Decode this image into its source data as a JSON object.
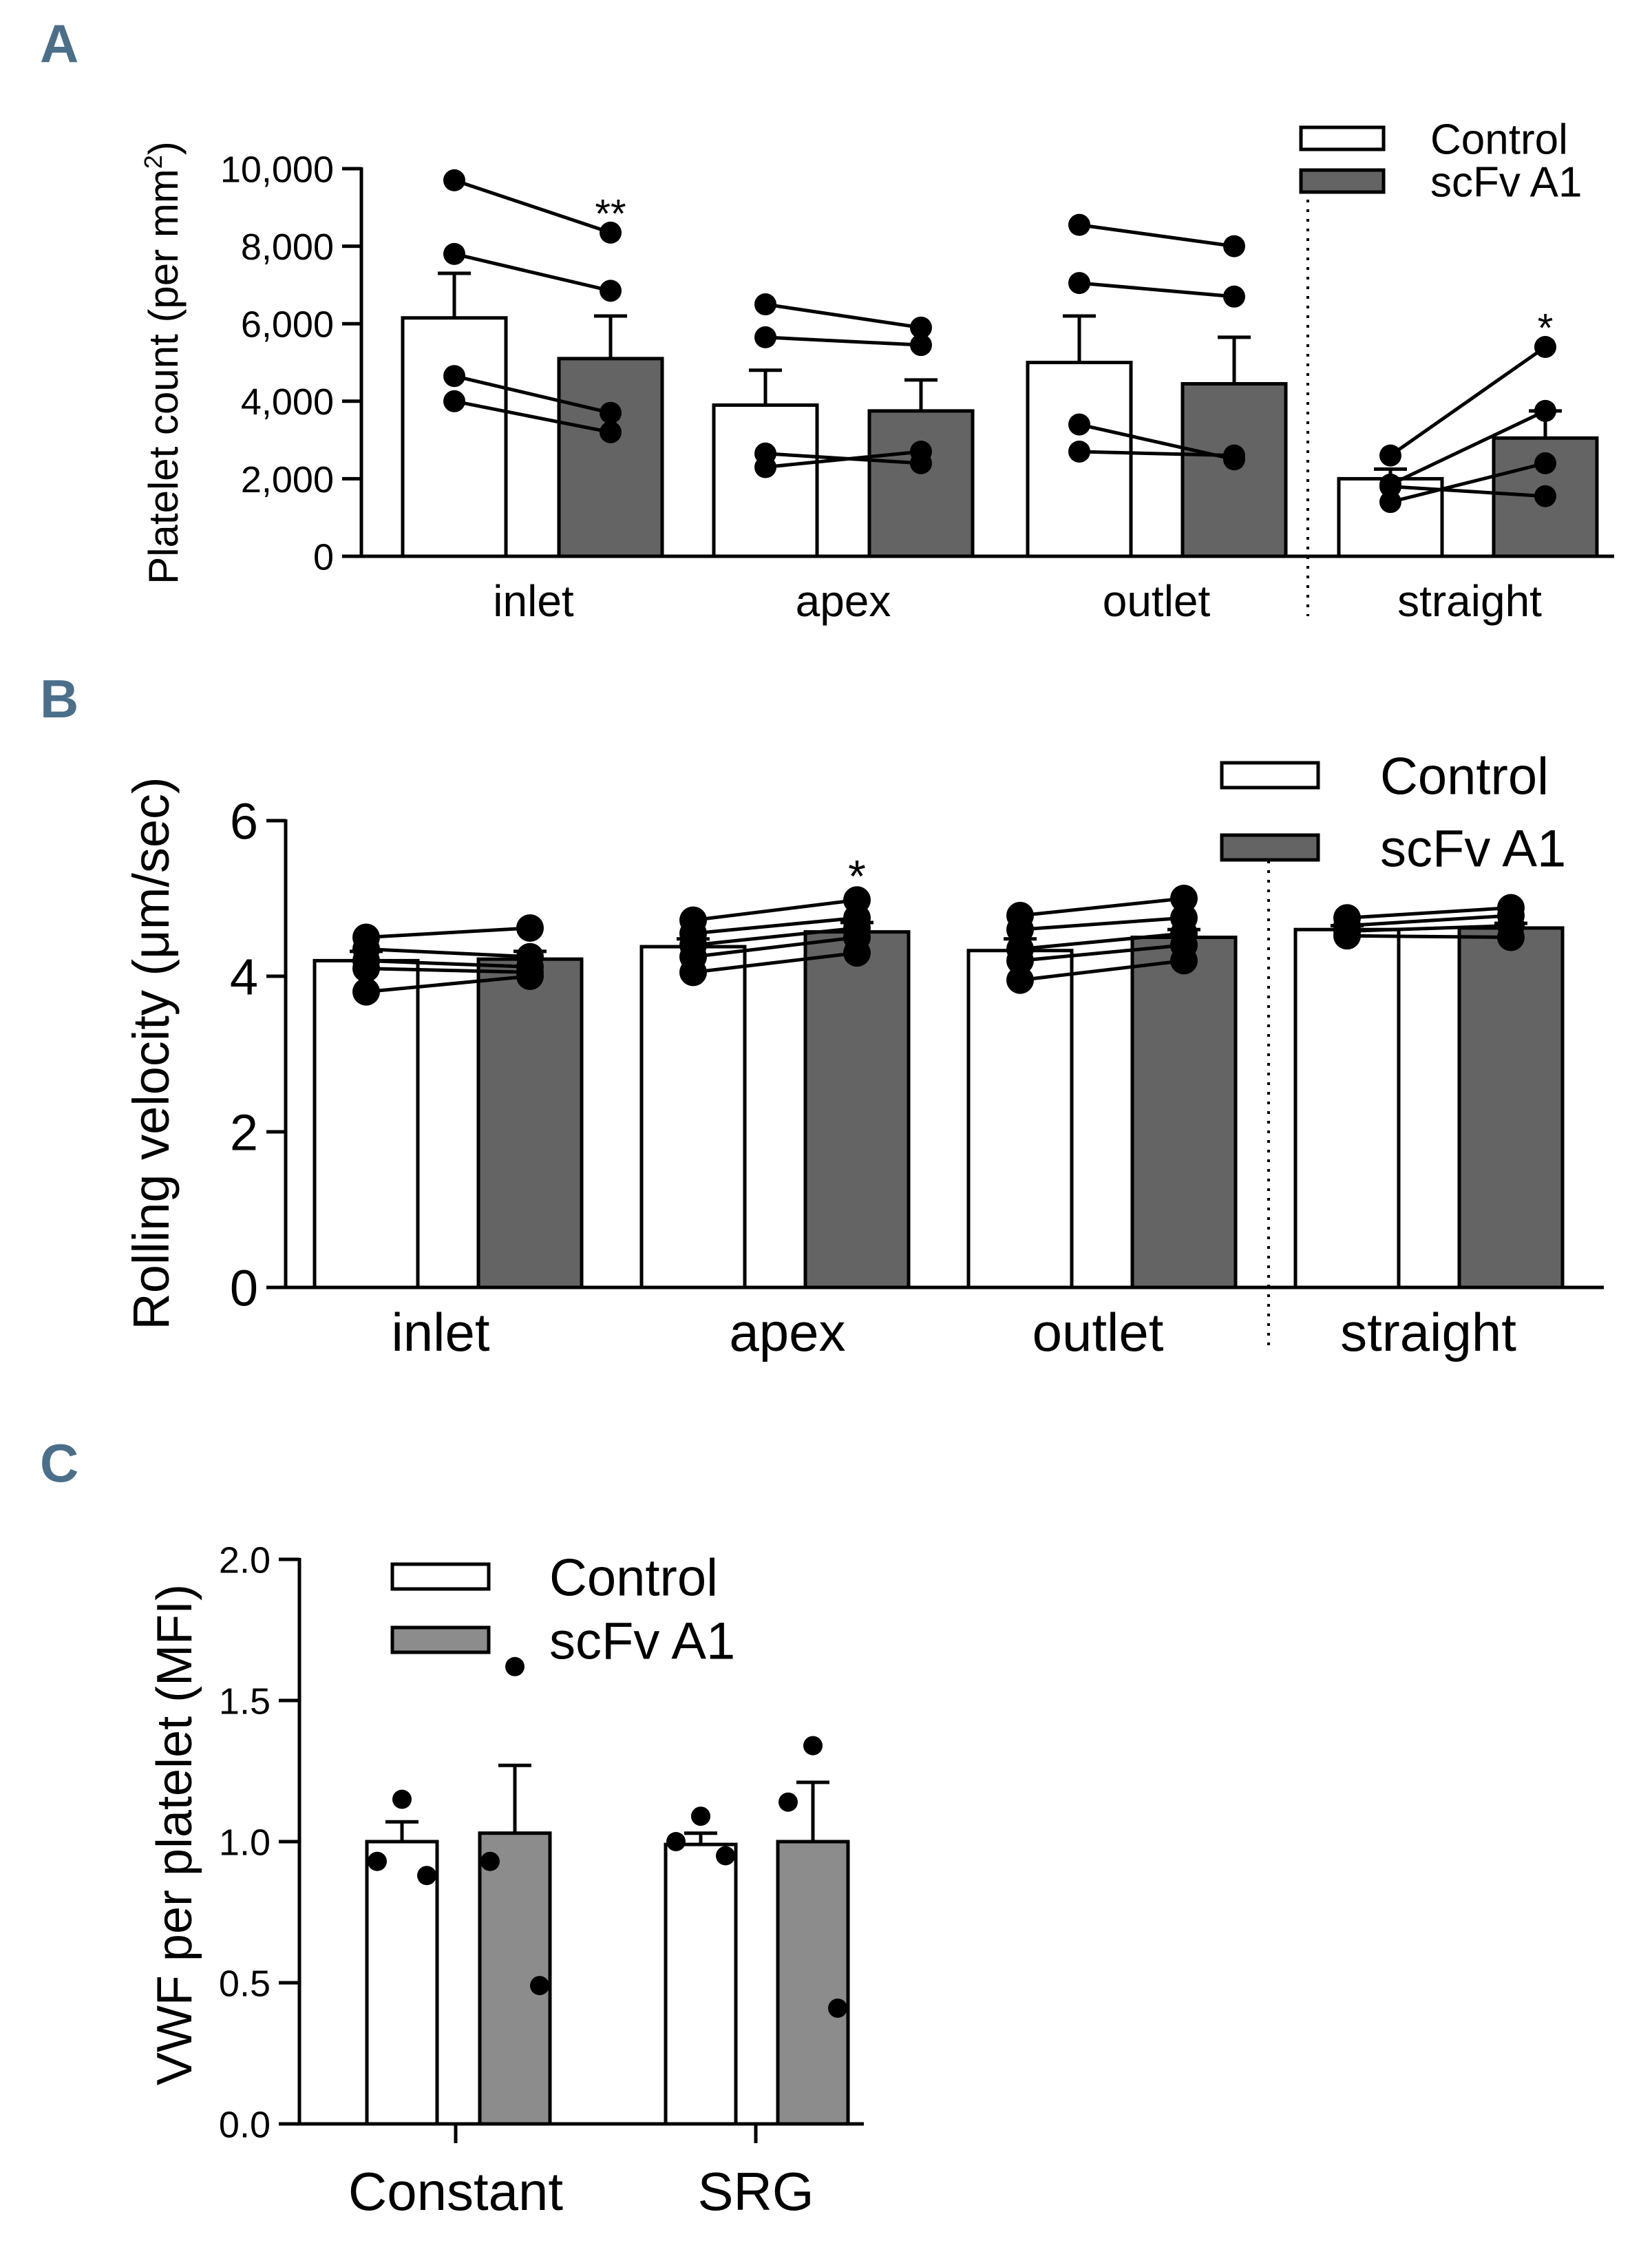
{
  "colors": {
    "control": "#ffffff",
    "treated_A": "#646464",
    "treated_B": "#646464",
    "treated_C": "#8c8c8c",
    "letter": "#4b6f8a"
  },
  "chart_data": [
    {
      "panel": "A",
      "type": "bar",
      "ylabel": "Platelet count (per mm",
      "ylabel_sup": "2",
      "ylabel_end": ")",
      "ylim": [
        0,
        10000
      ],
      "yticks": [
        0,
        2000,
        4000,
        6000,
        8000,
        10000
      ],
      "ytick_labels": [
        "0",
        "2,000",
        "4,000",
        "6,000",
        "8,000",
        "10,000"
      ],
      "categories": [
        "inlet",
        "apex",
        "outlet",
        "straight"
      ],
      "legend": [
        "Control",
        "scFv A1"
      ],
      "legend_position": "top-right",
      "series": [
        {
          "name": "Control",
          "values": [
            6150,
            3900,
            5000,
            2000
          ],
          "sem": [
            1150,
            900,
            1200,
            250
          ]
        },
        {
          "name": "scFv A1",
          "values": [
            5100,
            3750,
            4450,
            3050
          ],
          "sem": [
            1100,
            800,
            1200,
            700
          ]
        }
      ],
      "paired_points": [
        [
          [
            9700,
            8350
          ],
          [
            7800,
            6850
          ],
          [
            4650,
            3700
          ],
          [
            4000,
            3200
          ]
        ],
        [
          [
            6500,
            5900
          ],
          [
            5650,
            5450
          ],
          [
            2650,
            2400
          ],
          [
            2300,
            2700
          ]
        ],
        [
          [
            8550,
            8000
          ],
          [
            7050,
            6700
          ],
          [
            3400,
            2500
          ],
          [
            2700,
            2600
          ]
        ],
        [
          [
            2600,
            5400
          ],
          [
            1850,
            3750
          ],
          [
            1400,
            2400
          ],
          [
            1800,
            1550
          ]
        ]
      ],
      "significance": [
        "**",
        "",
        "",
        "*"
      ]
    },
    {
      "panel": "B",
      "type": "bar",
      "ylabel": "Rolling velocity (μm/sec)",
      "ylim": [
        0,
        6
      ],
      "yticks": [
        0,
        2,
        4,
        6
      ],
      "ytick_labels": [
        "0",
        "2",
        "4",
        "6"
      ],
      "categories": [
        "inlet",
        "apex",
        "outlet",
        "straight"
      ],
      "legend": [
        "Control",
        "scFv A1"
      ],
      "legend_position": "top-right",
      "series": [
        {
          "name": "Control",
          "values": [
            4.2,
            4.38,
            4.33,
            4.6
          ],
          "sem": [
            0.12,
            0.1,
            0.15,
            0.05
          ]
        },
        {
          "name": "scFv A1",
          "values": [
            4.22,
            4.57,
            4.5,
            4.62
          ],
          "sem": [
            0.1,
            0.12,
            0.1,
            0.06
          ]
        }
      ],
      "paired_points": [
        [
          [
            4.5,
            4.62
          ],
          [
            4.35,
            4.25
          ],
          [
            4.2,
            4.12
          ],
          [
            4.1,
            4.05
          ],
          [
            3.8,
            4.0
          ]
        ],
        [
          [
            4.72,
            4.98
          ],
          [
            4.55,
            4.75
          ],
          [
            4.4,
            4.62
          ],
          [
            4.25,
            4.5
          ],
          [
            4.05,
            4.3
          ]
        ],
        [
          [
            4.78,
            5.0
          ],
          [
            4.6,
            4.75
          ],
          [
            4.35,
            4.55
          ],
          [
            4.2,
            4.4
          ],
          [
            3.95,
            4.2
          ]
        ],
        [
          [
            4.75,
            4.88
          ],
          [
            4.65,
            4.78
          ],
          [
            4.58,
            4.65
          ],
          [
            4.52,
            4.5
          ]
        ]
      ],
      "significance": [
        "",
        "*",
        "",
        ""
      ]
    },
    {
      "panel": "C",
      "type": "bar",
      "ylabel": "VWF per platelet (MFI)",
      "ylim": [
        0,
        2.0
      ],
      "yticks": [
        0,
        0.5,
        1.0,
        1.5,
        2.0
      ],
      "ytick_labels": [
        "0.0",
        "0.5",
        "1.0",
        "1.5",
        "2.0"
      ],
      "categories": [
        "Constant",
        "SRG"
      ],
      "legend": [
        "Control",
        "scFv A1"
      ],
      "legend_position": "top-left",
      "series": [
        {
          "name": "Control",
          "values": [
            1.0,
            0.99
          ],
          "sem": [
            0.07,
            0.04
          ]
        },
        {
          "name": "scFv A1",
          "values": [
            1.03,
            1.0
          ],
          "sem": [
            0.24,
            0.21
          ]
        }
      ],
      "points": [
        [
          [
            1.15,
            0.93,
            0.88
          ],
          [
            1.62,
            0.93,
            0.49
          ]
        ],
        [
          [
            1.09,
            1.0,
            0.95
          ],
          [
            1.34,
            1.14,
            0.41
          ]
        ]
      ]
    }
  ]
}
